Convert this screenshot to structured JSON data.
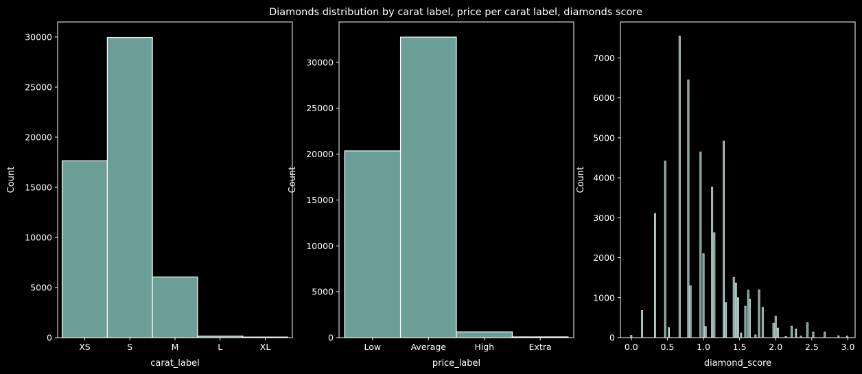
{
  "title": "Diamonds distribution by carat label, price per carat label, diamonds score",
  "colors": {
    "background": "#000000",
    "bar_fill": "#6a9e96",
    "bar_edge": "#ffffff",
    "text": "#ffffff"
  },
  "chart_data": [
    {
      "type": "bar",
      "categories": [
        "XS",
        "S",
        "M",
        "L",
        "XL"
      ],
      "values": [
        17650,
        29950,
        6050,
        150,
        60
      ],
      "xlabel": "carat_label",
      "ylabel": "Count",
      "ylim": [
        0,
        31500
      ],
      "yticks": [
        0,
        5000,
        10000,
        15000,
        20000,
        25000,
        30000
      ],
      "grid": false
    },
    {
      "type": "bar",
      "categories": [
        "Low",
        "Average",
        "High",
        "Extra"
      ],
      "values": [
        20350,
        32750,
        620,
        80
      ],
      "xlabel": "price_label",
      "ylabel": "Count",
      "ylim": [
        0,
        34400
      ],
      "yticks": [
        0,
        5000,
        10000,
        15000,
        20000,
        25000,
        30000
      ],
      "grid": false
    },
    {
      "type": "bar",
      "subtype": "histogram",
      "x": [
        0.0,
        0.15,
        0.33,
        0.47,
        0.52,
        0.67,
        0.79,
        0.82,
        0.96,
        1.0,
        1.03,
        1.12,
        1.15,
        1.28,
        1.31,
        1.42,
        1.45,
        1.48,
        1.52,
        1.58,
        1.62,
        1.64,
        1.72,
        1.77,
        1.82,
        1.97,
        2.0,
        2.03,
        2.14,
        2.22,
        2.28,
        2.35,
        2.44,
        2.52,
        2.68,
        2.87,
        2.99
      ],
      "values": [
        60,
        680,
        3110,
        4420,
        250,
        7550,
        6450,
        1300,
        4650,
        2100,
        280,
        3770,
        2630,
        4920,
        880,
        1510,
        1370,
        1000,
        120,
        790,
        1190,
        960,
        70,
        1200,
        760,
        360,
        540,
        240,
        30,
        290,
        220,
        40,
        380,
        140,
        140,
        50,
        40
      ],
      "bin_width": 0.022,
      "xlabel": "diamond_score",
      "ylabel": "Count",
      "xlim": [
        -0.15,
        3.1
      ],
      "ylim": [
        0,
        7900
      ],
      "xticks": [
        "0.0",
        "0.5",
        "1.0",
        "1.5",
        "2.0",
        "2.5",
        "3.0"
      ],
      "yticks": [
        0,
        1000,
        2000,
        3000,
        4000,
        5000,
        6000,
        7000
      ],
      "grid": false
    }
  ]
}
